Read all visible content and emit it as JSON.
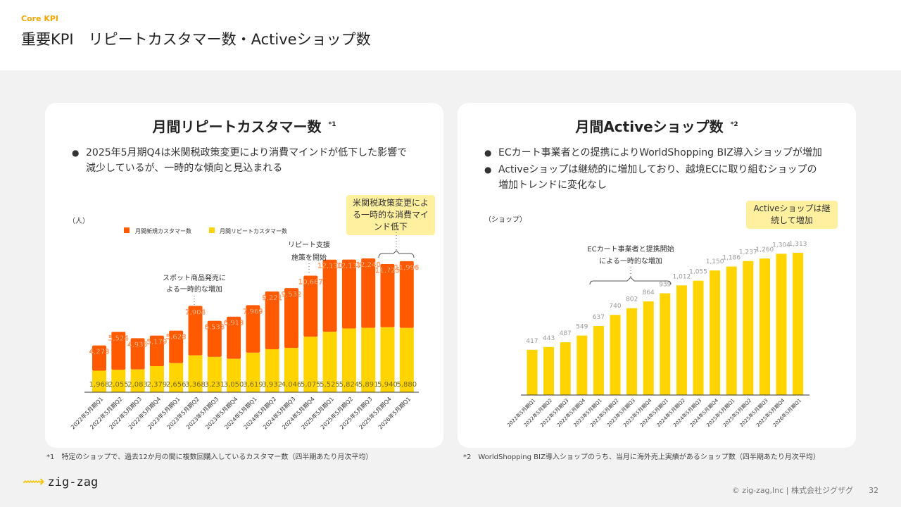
{
  "header": {
    "kicker": "Core KPI",
    "title": "重要KPI　リピートカスタマー数・Activeショップ数"
  },
  "left": {
    "title": "月間リピートカスタマー数",
    "mark": "*1",
    "bullets": [
      "2025年5月期Q4は米関税政策変更により消費マインドが低下した影響で減少しているが、一時的な傾向と見込まれる"
    ],
    "note": "米関税政策変更による一時的な消費マインド低下",
    "ann1": "スポット商品発売による一時的な増加",
    "ann2": "リピート支援施策を開始"
  },
  "right": {
    "title": "月間Activeショップ数",
    "mark": "*2",
    "bullets": [
      "ECカート事業者との提携によりWorldShopping BIZ導入ショップが増加",
      "Activeショップは継続的に増加しており、越境ECに取り組むショップの増加トレンドに変化なし"
    ],
    "note": "Activeショップは継続して増加",
    "ann1": "ECカート事業者と提携開始による一時的な増加"
  },
  "chart_data": [
    {
      "type": "bar",
      "stacked": true,
      "ylabel": "（人）",
      "ylim": [
        0,
        12500
      ],
      "categories": [
        "2022年5月期Q1",
        "2022年5月期Q2",
        "2022年5月期Q3",
        "2022年5月期Q4",
        "2023年5月期Q1",
        "2023年5月期Q2",
        "2023年5月期Q3",
        "2023年5月期Q4",
        "2024年5月期Q1",
        "2024年5月期Q2",
        "2024年5月期Q3",
        "2024年5月期Q4",
        "2025年5月期Q1",
        "2025年5月期Q2",
        "2025年5月期Q3",
        "2025年5月期Q4",
        "2026年5月期Q1"
      ],
      "series": [
        {
          "name": "月間リピートカスタマー数",
          "color": "#ffd400",
          "values": [
            1968,
            2055,
            2083,
            2379,
            2656,
            3368,
            3231,
            3050,
            3619,
            3932,
            4046,
            5075,
            5525,
            5824,
            5891,
            5940,
            5880
          ]
        },
        {
          "name": "月間新規カスタマー数",
          "color": "#ff5a00",
          "totals": [
            4273,
            5524,
            4935,
            5179,
            5628,
            7904,
            6533,
            6913,
            7969,
            9221,
            9532,
            10667,
            12130,
            12137,
            12240,
            11725,
            11996
          ]
        }
      ],
      "total_labels": [
        "4,273",
        "5,524",
        "4,935",
        "5,179",
        "5,628",
        "7,904",
        "6,533",
        "6,913",
        "7,969",
        "9,221",
        "9,532",
        "10,667",
        "12,130",
        "12,137",
        "12,240",
        "11,725",
        "11,996"
      ],
      "repeat_labels": [
        "1,968",
        "2,055",
        "2,083",
        "2,379",
        "2,656",
        "3,368",
        "3,231",
        "3,050",
        "3,619",
        "3,932",
        "4,046",
        "5,075",
        "5,525",
        "5,824",
        "5,891",
        "5,940",
        "5,880"
      ],
      "legend": [
        "月間新規カスタマー数",
        "月間リピートカスタマー数"
      ]
    },
    {
      "type": "bar",
      "ylabel": "（ショップ）",
      "ylim": [
        0,
        1313
      ],
      "categories": [
        "2022年5月期Q1",
        "2022年5月期Q2",
        "2022年5月期Q3",
        "2022年5月期Q4",
        "2023年5月期Q1",
        "2023年5月期Q2",
        "2023年5月期Q3",
        "2023年5月期Q4",
        "2024年5月期Q1",
        "2024年5月期Q2",
        "2024年5月期Q3",
        "2024年5月期Q4",
        "2025年5月期Q1",
        "2025年5月期Q2",
        "2025年5月期Q3",
        "2025年5月期Q4",
        "2026年5月期Q1"
      ],
      "values": [
        417,
        443,
        487,
        549,
        637,
        740,
        802,
        864,
        939,
        1012,
        1055,
        1150,
        1186,
        1237,
        1260,
        1304,
        1313
      ],
      "labels": [
        "417",
        "443",
        "487",
        "549",
        "637",
        "740",
        "802",
        "864",
        "939",
        "1,012",
        "1,055",
        "1,150",
        "1,186",
        "1,237",
        "1,260",
        "1,304",
        "1,313"
      ],
      "color": "#ffd400"
    }
  ],
  "footnotes": [
    "*1　特定のショップで、過去12か月の間に複数回購入しているカスタマー数（四半期あたり月次平均）",
    "*2　WorldShopping BIZ導入ショップのうち、当月に海外売上実績があるショップ数（四半期あたり月次平均）"
  ],
  "footer": {
    "logo": "zig-zag",
    "copyright": "© zig-zag,Inc | 株式会社ジグザグ",
    "page": "32"
  }
}
